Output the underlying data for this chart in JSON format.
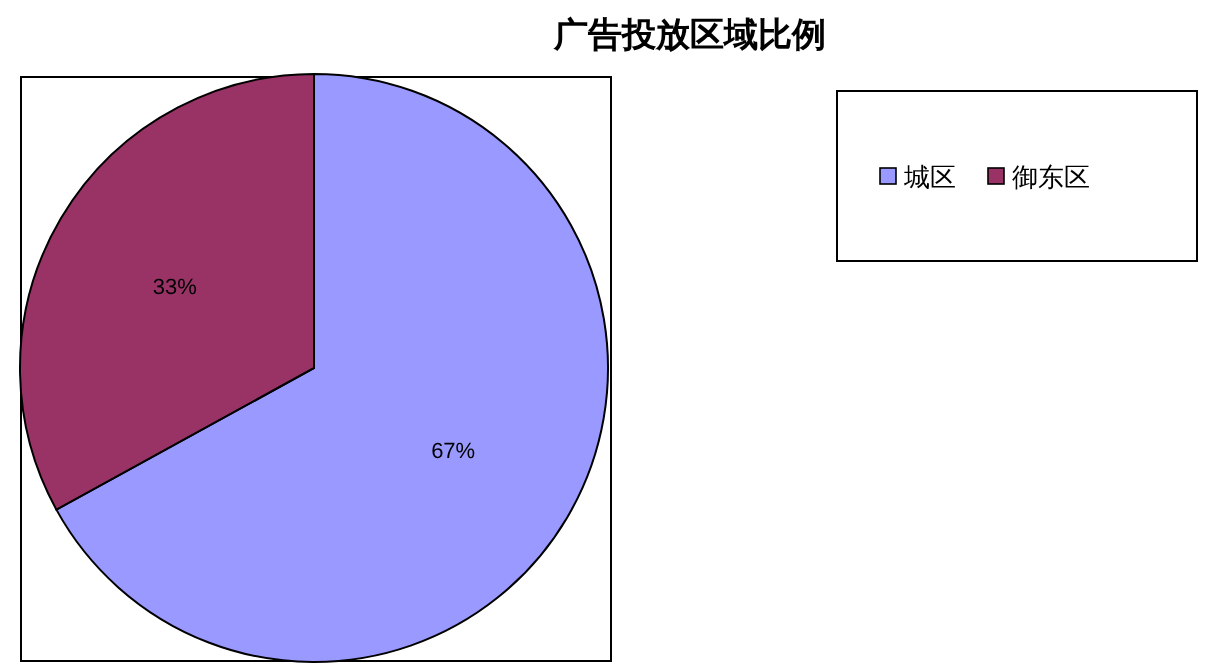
{
  "chart_data": {
    "type": "pie",
    "title": "广告投放区域比例",
    "categories": [
      "城区",
      "御东区"
    ],
    "values": [
      67,
      33
    ],
    "colors": [
      "#9999ff",
      "#993366"
    ],
    "value_labels": [
      "67%",
      "33%"
    ],
    "legend": "right"
  }
}
